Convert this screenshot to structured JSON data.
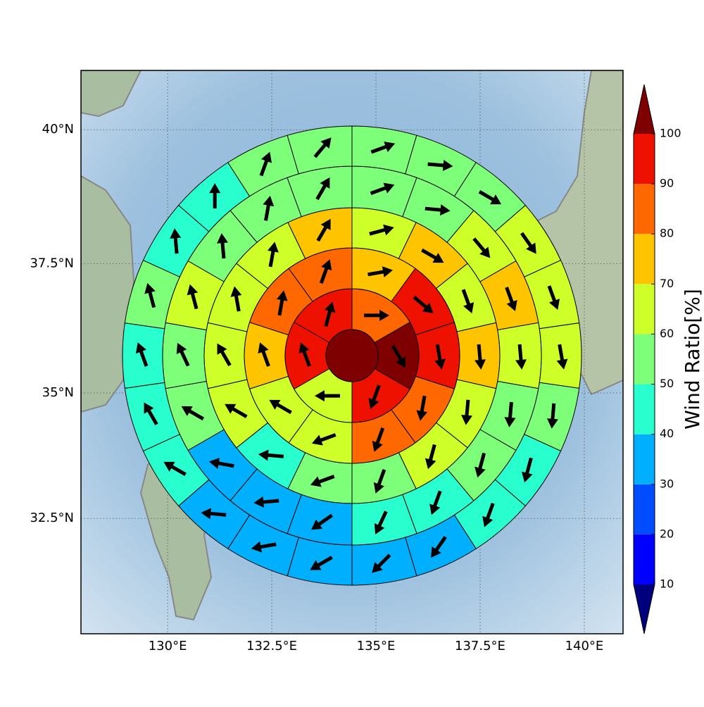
{
  "chart_data": {
    "type": "polar_sector_map",
    "projection": "mercator",
    "colorbar_label": "Wind Ratio[%]",
    "xlim": [
      127.92,
      140.93
    ],
    "ylim": [
      30.14,
      41.08
    ],
    "xticks": [
      {
        "value": 130,
        "label": "130°E"
      },
      {
        "value": 132.5,
        "label": "132.5°E"
      },
      {
        "value": 135,
        "label": "135°E"
      },
      {
        "value": 137.5,
        "label": "137.5°E"
      },
      {
        "value": 140,
        "label": "140°E"
      }
    ],
    "yticks": [
      {
        "value": 32.5,
        "label": "32.5°N"
      },
      {
        "value": 35,
        "label": "35°N"
      },
      {
        "value": 37.5,
        "label": "37.5°N"
      },
      {
        "value": 40,
        "label": "40°N"
      }
    ],
    "grid": true,
    "levels": [
      10,
      20,
      30,
      40,
      50,
      60,
      70,
      80,
      90,
      100
    ],
    "colors": [
      "#0000ff",
      "#004cff",
      "#00b0ff",
      "#29ffce",
      "#7dff7a",
      "#ceff29",
      "#ffc400",
      "#ff6800",
      "#ee1100"
    ],
    "under_color": "#00007f",
    "over_color": "#7f0000",
    "center_value": 105,
    "rings": [
      {
        "values": [
          85,
          105,
          93,
          68,
          94,
          92
        ],
        "directions": [
          90,
          150,
          200,
          270,
          340,
          15
        ]
      },
      {
        "values": [
          76,
          95,
          92,
          85,
          84,
          66,
          68,
          75,
          85,
          84
        ],
        "directions": [
          80,
          130,
          170,
          190,
          200,
          250,
          300,
          340,
          10,
          20
        ]
      },
      {
        "values": [
          65,
          75,
          65,
          74,
          63,
          66,
          55,
          54,
          45,
          64,
          62,
          64,
          65,
          74
        ],
        "directions": [
          75,
          120,
          160,
          175,
          185,
          195,
          200,
          250,
          275,
          300,
          330,
          350,
          10,
          30
        ]
      },
      {
        "values": [
          56,
          57,
          63,
          74,
          65,
          58,
          56,
          45,
          45,
          36,
          35,
          38,
          55,
          56,
          63,
          56,
          57,
          55
        ],
        "directions": [
          70,
          95,
          140,
          160,
          175,
          185,
          195,
          200,
          205,
          235,
          265,
          280,
          300,
          335,
          345,
          355,
          10,
          30
        ]
      },
      {
        "values": [
          55,
          56,
          57,
          63,
          64,
          62,
          56,
          46,
          45,
          35,
          36,
          35,
          36,
          38,
          45,
          46,
          45,
          55,
          46,
          47,
          54,
          55
        ],
        "directions": [
          70,
          95,
          120,
          145,
          160,
          170,
          185,
          195,
          200,
          215,
          225,
          240,
          260,
          275,
          300,
          330,
          340,
          345,
          355,
          0,
          20,
          40
        ]
      }
    ]
  }
}
